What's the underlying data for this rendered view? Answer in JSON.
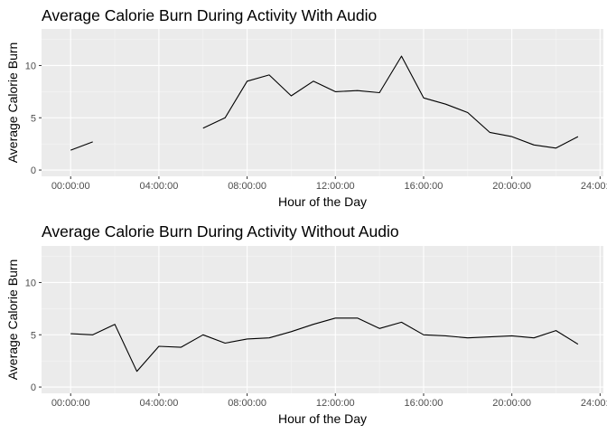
{
  "chart_data": [
    {
      "type": "line",
      "title": "Average Calorie Burn During Activity With Audio",
      "xlabel": "Hour of the Day",
      "ylabel": "Average Calorie Burn",
      "xlim": [
        0,
        24
      ],
      "ylim": [
        0,
        13.5
      ],
      "x_tick_values": [
        0,
        4,
        8,
        12,
        16,
        20,
        24
      ],
      "x_tick_labels": [
        "00:00:00",
        "04:00:00",
        "08:00:00",
        "12:00:00",
        "16:00:00",
        "20:00:00",
        "24:00:00"
      ],
      "y_tick_values": [
        0,
        5,
        10
      ],
      "y_tick_labels": [
        "0",
        "5",
        "10"
      ],
      "grid": true,
      "line_color": "#000000",
      "panel_color": "#ebebeb",
      "series": [
        {
          "x": [
            0,
            1,
            2,
            3,
            4,
            5,
            6,
            7,
            8,
            9,
            10,
            11,
            12,
            13,
            14,
            15,
            16,
            17,
            18,
            19,
            20,
            21,
            22,
            23
          ],
          "values": [
            1.9,
            2.7,
            null,
            null,
            null,
            null,
            4.0,
            5.0,
            8.5,
            9.1,
            7.1,
            8.5,
            7.5,
            7.6,
            7.4,
            10.9,
            6.9,
            6.3,
            5.5,
            3.6,
            3.2,
            2.4,
            2.1,
            3.2
          ]
        }
      ]
    },
    {
      "type": "line",
      "title": "Average Calorie Burn During Activity Without Audio",
      "xlabel": "Hour of the Day",
      "ylabel": "Average Calorie Burn",
      "xlim": [
        0,
        24
      ],
      "ylim": [
        0,
        13.5
      ],
      "x_tick_values": [
        0,
        4,
        8,
        12,
        16,
        20,
        24
      ],
      "x_tick_labels": [
        "00:00:00",
        "04:00:00",
        "08:00:00",
        "12:00:00",
        "16:00:00",
        "20:00:00",
        "24:00:00"
      ],
      "y_tick_values": [
        0,
        5,
        10
      ],
      "y_tick_labels": [
        "0",
        "5",
        "10"
      ],
      "grid": true,
      "line_color": "#000000",
      "panel_color": "#ebebeb",
      "series": [
        {
          "x": [
            0,
            1,
            2,
            3,
            4,
            5,
            6,
            7,
            8,
            9,
            10,
            11,
            12,
            13,
            14,
            15,
            16,
            17,
            18,
            19,
            20,
            21,
            22,
            23
          ],
          "values": [
            5.1,
            5.0,
            6.0,
            1.5,
            3.9,
            3.8,
            5.0,
            4.2,
            4.6,
            4.7,
            5.3,
            6.0,
            6.6,
            6.6,
            5.6,
            6.2,
            5.0,
            4.9,
            4.7,
            4.8,
            4.9,
            4.7,
            5.4,
            4.1
          ]
        }
      ]
    }
  ]
}
